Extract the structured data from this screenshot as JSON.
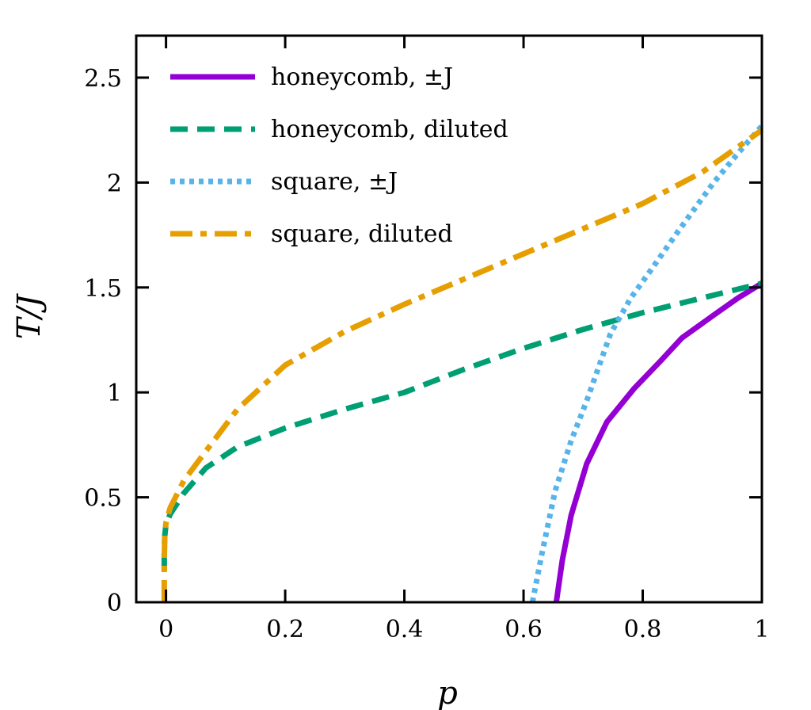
{
  "chart_data": {
    "type": "line",
    "title": "",
    "xlabel": "p",
    "ylabel": "T/J",
    "xlim": [
      -0.05,
      1.0
    ],
    "ylim": [
      0,
      2.7
    ],
    "xticks": [
      "0",
      "0.2",
      "0.4",
      "0.6",
      "0.8",
      "1"
    ],
    "xtick_values": [
      0,
      0.2,
      0.4,
      0.6,
      0.8,
      1
    ],
    "yticks": [
      "0",
      "0.5",
      "1",
      "1.5",
      "2",
      "2.5"
    ],
    "ytick_values": [
      0,
      0.5,
      1,
      1.5,
      2,
      2.5
    ],
    "grid": false,
    "legend_position": "top-left",
    "series": [
      {
        "name": "honeycomb, ±J",
        "color": "#9400d3",
        "style": "solid",
        "x": [
          0.655,
          0.665,
          0.68,
          0.706,
          0.74,
          0.786,
          0.83,
          0.866,
          0.92,
          0.96,
          1.0
        ],
        "y": [
          0.0,
          0.2,
          0.415,
          0.66,
          0.86,
          1.02,
          1.15,
          1.26,
          1.37,
          1.45,
          1.52
        ]
      },
      {
        "name": "honeycomb, diluted",
        "color": "#009e73",
        "style": "dashed",
        "x": [
          -0.003,
          -0.003,
          -0.002,
          0.0,
          0.007,
          0.03,
          0.067,
          0.12,
          0.2,
          0.3,
          0.4,
          0.5,
          0.6,
          0.7,
          0.8,
          0.9,
          1.0
        ],
        "y": [
          0.15,
          0.25,
          0.32,
          0.37,
          0.42,
          0.52,
          0.64,
          0.74,
          0.83,
          0.92,
          1.0,
          1.11,
          1.21,
          1.3,
          1.38,
          1.45,
          1.52
        ]
      },
      {
        "name": "square, ±J",
        "color": "#56b4e9",
        "style": "dotted",
        "x": [
          0.615,
          0.63,
          0.653,
          0.68,
          0.706,
          0.746,
          0.78,
          0.813,
          0.86,
          0.919,
          0.96,
          1.0
        ],
        "y": [
          0.0,
          0.22,
          0.53,
          0.77,
          0.96,
          1.28,
          1.45,
          1.58,
          1.77,
          2.0,
          2.14,
          2.27
        ]
      },
      {
        "name": "square, diluted",
        "color": "#e69f00",
        "style": "dashdot",
        "x": [
          -0.003,
          -0.003,
          -0.002,
          0.0,
          0.007,
          0.03,
          0.067,
          0.12,
          0.2,
          0.3,
          0.4,
          0.5,
          0.6,
          0.7,
          0.8,
          0.9,
          1.0
        ],
        "y": [
          0.0,
          0.2,
          0.32,
          0.38,
          0.45,
          0.58,
          0.72,
          0.92,
          1.13,
          1.29,
          1.42,
          1.54,
          1.66,
          1.78,
          1.9,
          2.05,
          2.25
        ]
      }
    ]
  }
}
